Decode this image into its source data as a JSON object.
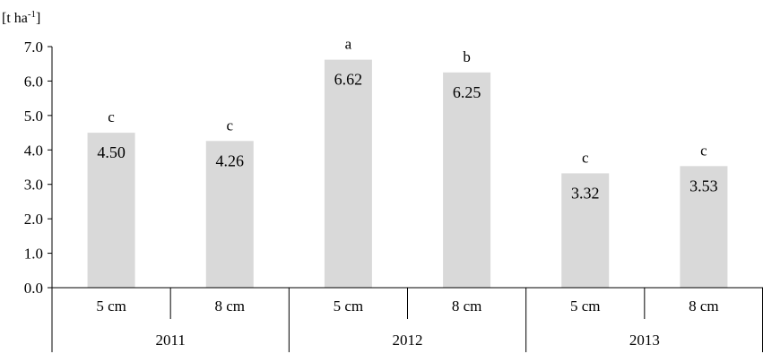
{
  "chart_data": {
    "type": "bar",
    "unit_label": "[t ha-1]",
    "unit_base": "[t ha",
    "unit_sup": "-1",
    "unit_close": "]",
    "ylim": [
      0,
      7
    ],
    "yticks": [
      "0.0",
      "1.0",
      "2.0",
      "3.0",
      "4.0",
      "5.0",
      "6.0",
      "7.0"
    ],
    "groups": [
      "2011",
      "2012",
      "2013"
    ],
    "categories": [
      "5 cm",
      "8 cm",
      "5 cm",
      "8 cm",
      "5 cm",
      "8 cm"
    ],
    "values": [
      4.5,
      4.26,
      6.62,
      6.25,
      3.32,
      3.53
    ],
    "value_labels": [
      "4.50",
      "4.26",
      "6.62",
      "6.25",
      "3.32",
      "3.53"
    ],
    "significance_letters": [
      "c",
      "c",
      "a",
      "b",
      "c",
      "c"
    ],
    "bar_color": "#d9d9d9",
    "grid": false
  }
}
